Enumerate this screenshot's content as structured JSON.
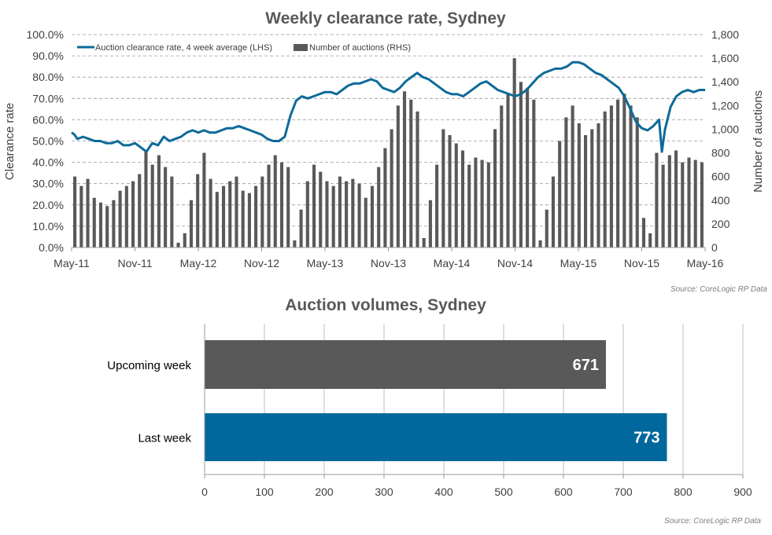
{
  "colors": {
    "line": "#0e6a99",
    "auction_bars": "#595959",
    "bar_upcoming": "#595959",
    "bar_last": "#00689c",
    "grid": "#999999"
  },
  "chart_data": [
    {
      "type": "line+bar",
      "title": "Weekly clearance rate, Sydney",
      "ylabel": "Clearance rate",
      "y2label": "Number of auctions",
      "ylim": [
        0,
        100
      ],
      "y2lim": [
        0,
        1800
      ],
      "x_tick_labels": [
        "May-11",
        "Nov-11",
        "May-12",
        "Nov-12",
        "May-13",
        "Nov-13",
        "May-14",
        "Nov-14",
        "May-15",
        "Nov-15",
        "May-16"
      ],
      "y_tick_labels": [
        "0.0%",
        "10.0%",
        "20.0%",
        "30.0%",
        "40.0%",
        "50.0%",
        "60.0%",
        "70.0%",
        "80.0%",
        "90.0%",
        "100.0%"
      ],
      "y2_tick_labels": [
        "0",
        "200",
        "400",
        "600",
        "800",
        "1,000",
        "1,200",
        "1,400",
        "1,600",
        "1,800"
      ],
      "legend": {
        "position": "top-left",
        "line_label": "Auction clearance rate, 4 week average (LHS)",
        "bar_label": "Number of auctions (RHS)"
      },
      "gridlines": "horizontal dashed",
      "series": [
        {
          "name": "Auction clearance rate, 4 week average (LHS)",
          "type": "line",
          "axis": "left",
          "points": [
            [
              0,
              54
            ],
            [
              0.25,
              53
            ],
            [
              0.5,
              51
            ],
            [
              1,
              52
            ],
            [
              1.5,
              51
            ],
            [
              2,
              50
            ],
            [
              2.5,
              50
            ],
            [
              3,
              49
            ],
            [
              3.5,
              49
            ],
            [
              4,
              50
            ],
            [
              4.5,
              48
            ],
            [
              5,
              48
            ],
            [
              5.5,
              49
            ],
            [
              6,
              47
            ],
            [
              6.5,
              45
            ],
            [
              7,
              49
            ],
            [
              7.5,
              48
            ],
            [
              8,
              52
            ],
            [
              8.5,
              50
            ],
            [
              9,
              51
            ],
            [
              9.5,
              52
            ],
            [
              10,
              54
            ],
            [
              10.5,
              55
            ],
            [
              11,
              54
            ],
            [
              11.5,
              55
            ],
            [
              12,
              54
            ],
            [
              12.5,
              54
            ],
            [
              13,
              55
            ],
            [
              13.5,
              56
            ],
            [
              14,
              56
            ],
            [
              14.5,
              57
            ],
            [
              15,
              56
            ],
            [
              15.5,
              55
            ],
            [
              16,
              54
            ],
            [
              16.5,
              53
            ],
            [
              17,
              51
            ],
            [
              17.5,
              50
            ],
            [
              18,
              50
            ],
            [
              18.5,
              52
            ],
            [
              19,
              62
            ],
            [
              19.5,
              69
            ],
            [
              20,
              71
            ],
            [
              20.5,
              70
            ],
            [
              21,
              71
            ],
            [
              21.5,
              72
            ],
            [
              22,
              73
            ],
            [
              22.5,
              73
            ],
            [
              23,
              72
            ],
            [
              23.5,
              74
            ],
            [
              24,
              76
            ],
            [
              24.5,
              77
            ],
            [
              25,
              77
            ],
            [
              25.5,
              78
            ],
            [
              26,
              79
            ],
            [
              26.5,
              78
            ],
            [
              27,
              75
            ],
            [
              27.5,
              74
            ],
            [
              28,
              73
            ],
            [
              28.5,
              75
            ],
            [
              29,
              78
            ],
            [
              29.5,
              80
            ],
            [
              30,
              82
            ],
            [
              30.5,
              80
            ],
            [
              31,
              79
            ],
            [
              31.5,
              77
            ],
            [
              32,
              75
            ],
            [
              32.5,
              73
            ],
            [
              33,
              72
            ],
            [
              33.5,
              72
            ],
            [
              34,
              71
            ],
            [
              34.5,
              73
            ],
            [
              35,
              75
            ],
            [
              35.5,
              77
            ],
            [
              36,
              78
            ],
            [
              36.5,
              76
            ],
            [
              37,
              74
            ],
            [
              37.5,
              73
            ],
            [
              38,
              72
            ],
            [
              38.5,
              71
            ],
            [
              39,
              72
            ],
            [
              39.5,
              74
            ],
            [
              40,
              77
            ],
            [
              40.5,
              80
            ],
            [
              41,
              82
            ],
            [
              41.5,
              83
            ],
            [
              42,
              84
            ],
            [
              42.5,
              84
            ],
            [
              43,
              85
            ],
            [
              43.5,
              87
            ],
            [
              44,
              87
            ],
            [
              44.5,
              86
            ],
            [
              45,
              84
            ],
            [
              45.5,
              82
            ],
            [
              46,
              81
            ],
            [
              46.5,
              79
            ],
            [
              47,
              77
            ],
            [
              47.5,
              75
            ],
            [
              48,
              71
            ],
            [
              48.5,
              65
            ],
            [
              49,
              59
            ],
            [
              49.5,
              56
            ],
            [
              50,
              55
            ],
            [
              50.5,
              57
            ],
            [
              51,
              60
            ],
            [
              51.25,
              45
            ],
            [
              51.5,
              55
            ],
            [
              52,
              66
            ],
            [
              52.5,
              71
            ],
            [
              53,
              73
            ],
            [
              53.5,
              74
            ],
            [
              54,
              73
            ],
            [
              54.5,
              74
            ],
            [
              55,
              74
            ]
          ]
        },
        {
          "name": "Number of auctions (RHS)",
          "type": "bar",
          "axis": "right",
          "values": [
            600,
            520,
            580,
            420,
            380,
            350,
            400,
            480,
            520,
            560,
            620,
            820,
            700,
            780,
            680,
            600,
            40,
            120,
            400,
            620,
            800,
            580,
            470,
            520,
            560,
            600,
            480,
            460,
            520,
            600,
            700,
            780,
            720,
            680,
            60,
            320,
            560,
            700,
            640,
            560,
            520,
            600,
            560,
            580,
            540,
            420,
            520,
            680,
            840,
            1000,
            1200,
            1320,
            1250,
            1150,
            80,
            400,
            700,
            1000,
            950,
            880,
            820,
            700,
            760,
            740,
            720,
            1000,
            1200,
            1300,
            1600,
            1400,
            1350,
            1250,
            60,
            320,
            600,
            900,
            1100,
            1200,
            1050,
            950,
            1000,
            1050,
            1150,
            1200,
            1250,
            1300,
            1200,
            1100,
            250,
            120,
            800,
            700,
            780,
            820,
            720,
            760,
            740,
            720
          ]
        }
      ]
    },
    {
      "type": "bar",
      "orientation": "horizontal",
      "title": "Auction volumes, Sydney",
      "categories": [
        "Upcoming week",
        "Last week"
      ],
      "values": [
        671,
        773
      ],
      "value_labels": [
        "671",
        "773"
      ],
      "xlim": [
        0,
        900
      ],
      "x_tick_labels": [
        "0",
        "100",
        "200",
        "300",
        "400",
        "500",
        "600",
        "700",
        "800",
        "900"
      ],
      "gridlines": "vertical"
    }
  ],
  "sources": {
    "top": "Source: CoreLogic  RP Data",
    "bottom": "Source: CoreLogic  RP Data"
  }
}
